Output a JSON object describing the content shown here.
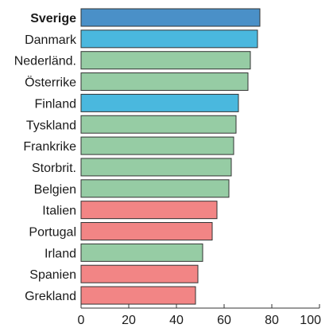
{
  "chart_data": {
    "type": "bar",
    "orientation": "horizontal",
    "title": "",
    "xlabel": "",
    "ylabel": "",
    "categories": [
      "Sverige",
      "Danmark",
      "Nederländ.",
      "Österrike",
      "Finland",
      "Tyskland",
      "Frankrike",
      "Storbrit.",
      "Belgien",
      "Italien",
      "Portugal",
      "Irland",
      "Spanien",
      "Grekland"
    ],
    "values": [
      75,
      74,
      71,
      70,
      66,
      65,
      64,
      63,
      62,
      57,
      55,
      51,
      49,
      48
    ],
    "bar_colors": [
      "#4a90c8",
      "#4ab8de",
      "#96cca4",
      "#96cca4",
      "#4ab8de",
      "#96cca4",
      "#96cca4",
      "#96cca4",
      "#96cca4",
      "#f28585",
      "#f28585",
      "#96cca4",
      "#f28585",
      "#f28585"
    ],
    "highlight_category": "Sverige",
    "highlight_label_color": "#4a90c8",
    "xlim": [
      0,
      100
    ],
    "xticks": [
      0,
      20,
      40,
      60,
      80,
      100
    ],
    "grid": false
  }
}
